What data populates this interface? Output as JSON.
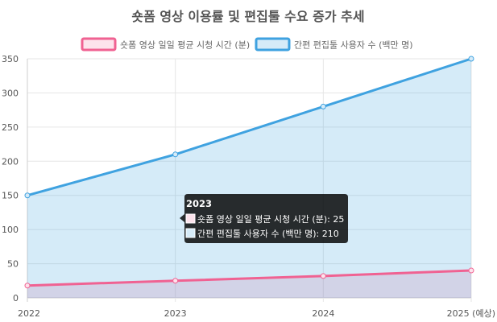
{
  "chart_data": {
    "type": "line",
    "title": "숏폼 영상 이용률 및 편집툴 수요 증가 추세",
    "categories": [
      "2022",
      "2023",
      "2024",
      "2025 (예상)"
    ],
    "series": [
      {
        "name": "숏폼 영상 일일 평균 시청 시간 (분)",
        "values": [
          18,
          25,
          32,
          40
        ],
        "color": "#f06292",
        "fill": "rgba(240,98,146,0.2)",
        "legend_fill": "#fde3ec"
      },
      {
        "name": "간편 편집툴 사용자 수 (백만 명)",
        "values": [
          150,
          210,
          280,
          350
        ],
        "color": "#3fa2e0",
        "fill": "rgba(63,162,224,0.22)",
        "legend_fill": "#d6ebf8"
      }
    ],
    "ylim": [
      0,
      350
    ],
    "yticks": [
      "0",
      "50",
      "100",
      "150",
      "200",
      "250",
      "300",
      "350"
    ],
    "area_fill": true,
    "grid": true,
    "legend_position": "top",
    "tooltip": {
      "title": "2023",
      "lines": [
        "숏폼 영상 일일 평균 시청 시간 (분): 25",
        "간편 편집툴 사용자 수 (백만 명): 210"
      ]
    }
  }
}
